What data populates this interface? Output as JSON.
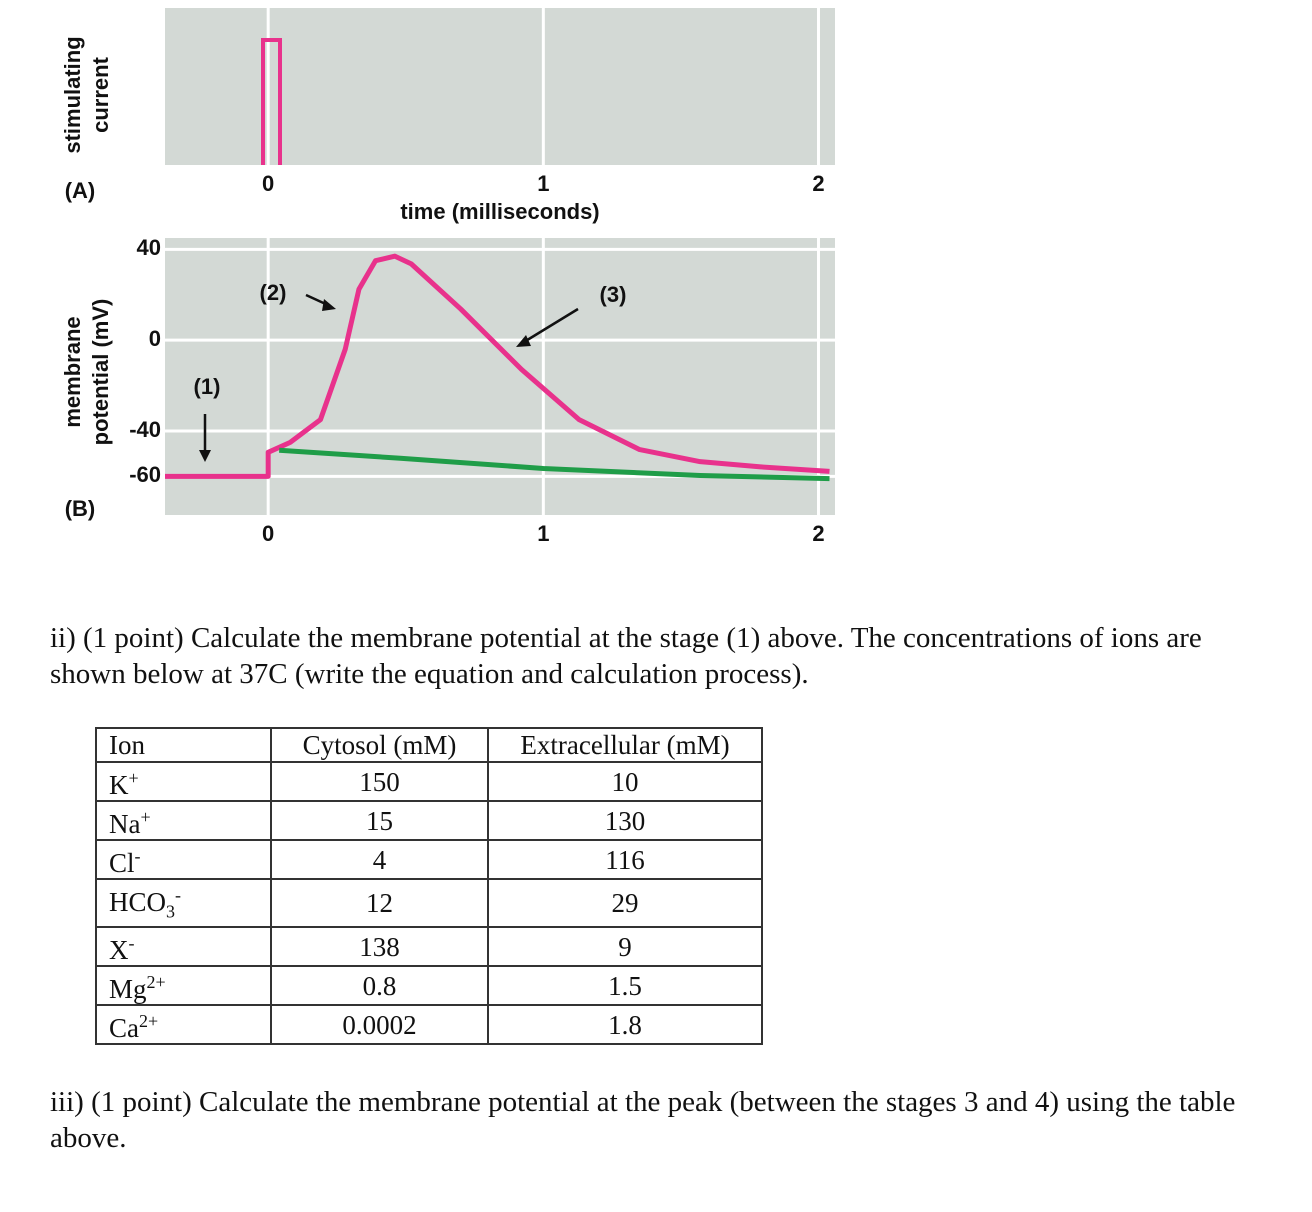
{
  "figure": {
    "panel_a": {
      "label": "(A)",
      "ylabel": [
        "stimulating",
        "current"
      ],
      "xlabel": "time (milliseconds)",
      "xlim": [
        -0.375,
        2.06
      ],
      "xticks": [
        0,
        1,
        2
      ]
    },
    "panel_b": {
      "type": "line",
      "label": "(B)",
      "ylabel": [
        "membrane",
        "potential (mV)"
      ],
      "xlim": [
        -0.375,
        2.06
      ],
      "xticks": [
        0,
        1,
        2
      ],
      "ylim": [
        -77,
        45
      ],
      "yticks": [
        40,
        0,
        -40,
        -60
      ],
      "grid": true,
      "series": [
        {
          "color": "#e8328c",
          "x": [
            -0.375,
            0,
            0,
            0.08,
            0.19,
            0.28,
            0.33,
            0.39,
            0.46,
            0.52,
            0.7,
            0.92,
            1.13,
            1.35,
            1.57,
            1.79,
            2.04
          ],
          "values": [
            -60,
            -60,
            -49.4,
            -45,
            -35,
            -4,
            22.5,
            35,
            37,
            33.6,
            13.7,
            -12.8,
            -35,
            -48.2,
            -53.5,
            -55.8,
            -57.8
          ]
        },
        {
          "color": "#1f9d48",
          "x": [
            0.04,
            0.48,
            1.0,
            1.57,
            2.04
          ],
          "values": [
            -48.5,
            -52,
            -56.5,
            -59.6,
            -61
          ]
        }
      ],
      "annotations": [
        "(1)",
        "(2)",
        "(3)"
      ]
    }
  },
  "question_ii": "ii) (1 point) Calculate the membrane potential at the stage (1) above.  The concentrations of ions are shown below at 37C (write the equation and calculation process).",
  "table": {
    "header": [
      "Ion",
      "Cytosol (mM)",
      "Extracellular (mM)"
    ],
    "rows": [
      [
        {
          "text": "K",
          "sup": "+"
        },
        150,
        10
      ],
      [
        {
          "text": "Na",
          "sup": "+"
        },
        15,
        130
      ],
      [
        {
          "text": "Cl",
          "sup": "-"
        },
        4,
        116
      ],
      [
        {
          "text": "HCO",
          "sub": "3",
          "sup": "-"
        },
        12,
        29
      ],
      [
        {
          "text": "X",
          "sup": "-"
        },
        138,
        9
      ],
      [
        {
          "text": "Mg",
          "sup": "2+"
        },
        0.8,
        1.5
      ],
      [
        {
          "text": "Ca",
          "sup": "2+"
        },
        0.0002,
        1.8
      ]
    ]
  },
  "question_iii": "iii) (1 point) Calculate the membrane potential at the peak (between the stages 3 and 4) using the table above."
}
